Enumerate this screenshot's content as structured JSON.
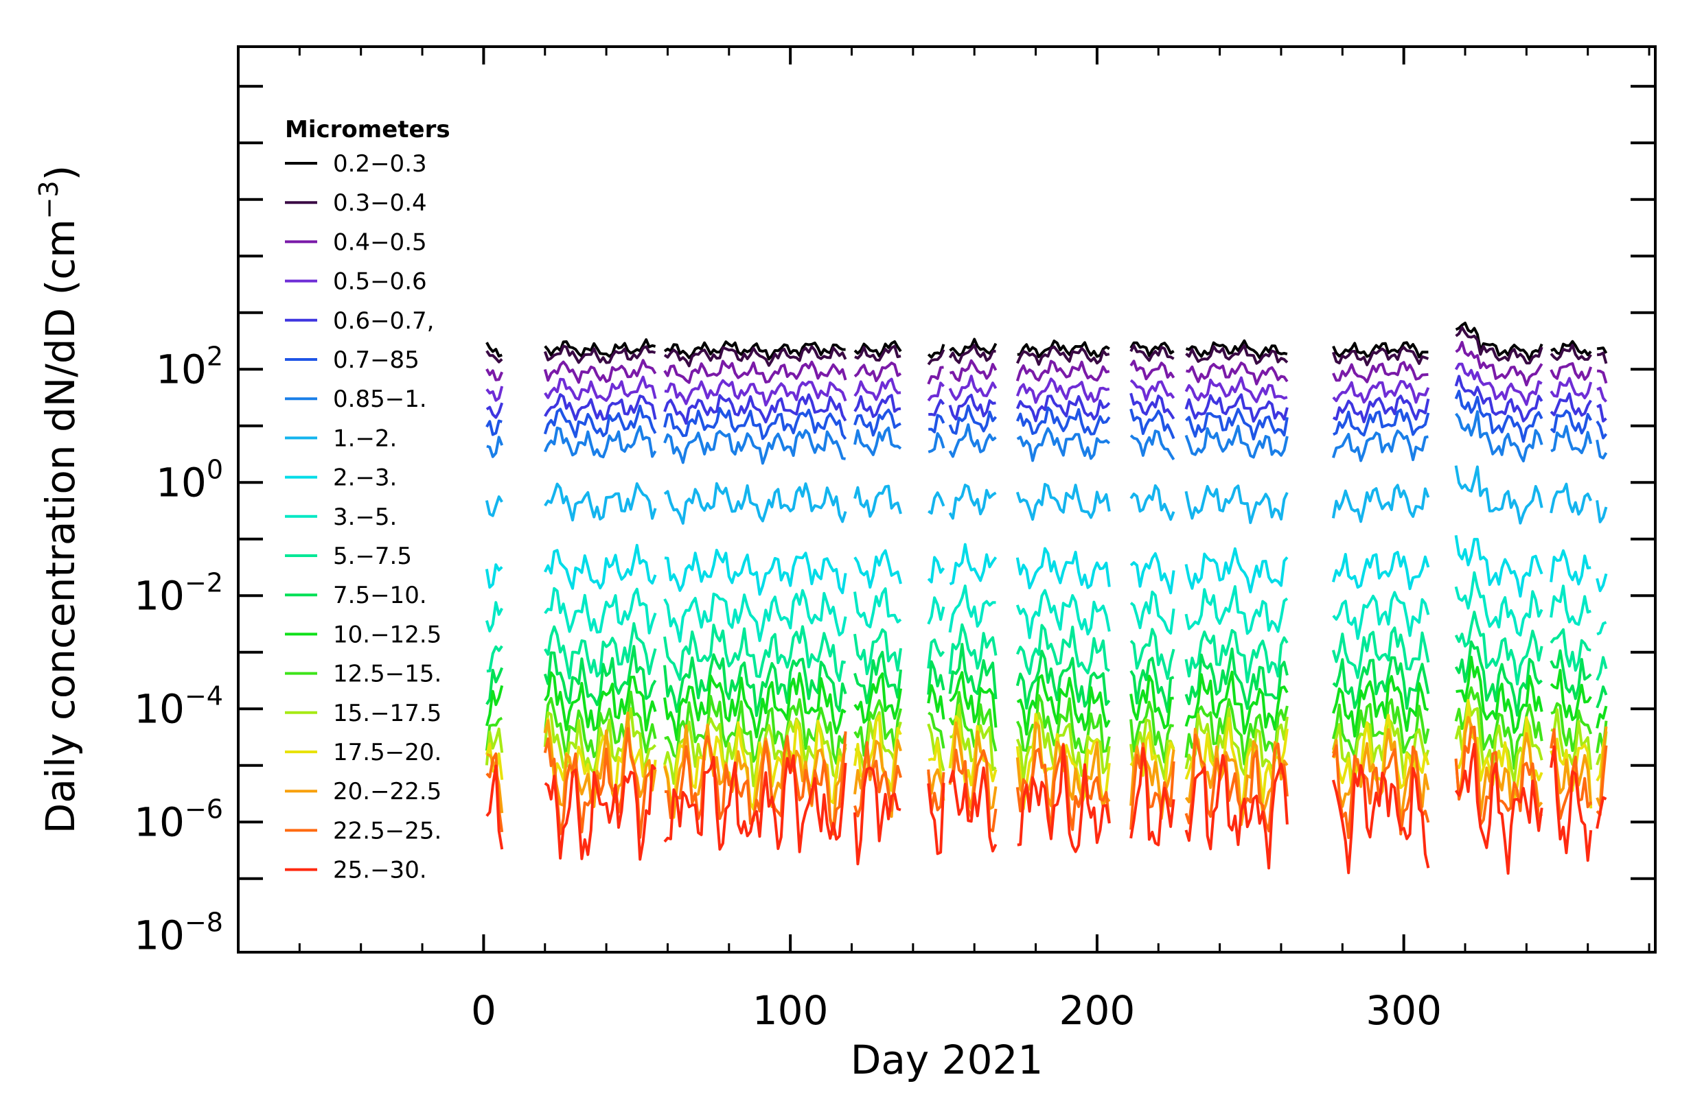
{
  "chart_data": {
    "type": "line",
    "xlabel": "Day 2021",
    "ylabel": "Daily concentration dN/dD (cm",
    "ylabel_exp": "−3",
    "ylabel_close": ")",
    "yscale": "log",
    "xlim": [
      -80,
      382
    ],
    "ylim": [
      -8.3,
      7.7
    ],
    "x_ticks": [
      {
        "value": 0,
        "label": "0"
      },
      {
        "value": 100,
        "label": "100"
      },
      {
        "value": 200,
        "label": "200"
      },
      {
        "value": 300,
        "label": "300"
      }
    ],
    "y_ticks": [
      {
        "exp": 2,
        "base": "10",
        "power": "2"
      },
      {
        "exp": 0,
        "base": "10",
        "power": "0"
      },
      {
        "exp": -2,
        "base": "10",
        "power": "−2"
      },
      {
        "exp": -4,
        "base": "10",
        "power": "−4"
      },
      {
        "exp": -6,
        "base": "10",
        "power": "−6"
      },
      {
        "exp": -8,
        "base": "10",
        "power": "−8"
      }
    ],
    "legend": {
      "title": "Micrometers",
      "position": "top-left"
    },
    "segments": [
      [
        1,
        6
      ],
      [
        20,
        56
      ],
      [
        59,
        118
      ],
      [
        121,
        136
      ],
      [
        145,
        150
      ],
      [
        152,
        167
      ],
      [
        174,
        204
      ],
      [
        211,
        225
      ],
      [
        229,
        262
      ],
      [
        277,
        308
      ],
      [
        317,
        345
      ],
      [
        348,
        361
      ],
      [
        363,
        366
      ]
    ],
    "series": [
      {
        "name": "0.2−0.3",
        "color": "#000000",
        "level": 2.35,
        "amp": 0.24
      },
      {
        "name": "0.3−0.4",
        "color": "#3a0a45",
        "level": 2.25,
        "amp": 0.24
      },
      {
        "name": "0.4−0.5",
        "color": "#7a1aa8",
        "level": 1.95,
        "amp": 0.26
      },
      {
        "name": "0.5−0.6",
        "color": "#6e2dd6",
        "level": 1.62,
        "amp": 0.27
      },
      {
        "name": "0.6−0.7,",
        "color": "#3e35e0",
        "level": 1.32,
        "amp": 0.28
      },
      {
        "name": "0.7−85",
        "color": "#1f55e6",
        "level": 1.05,
        "amp": 0.29
      },
      {
        "name": "0.85−1.",
        "color": "#1a7fe8",
        "level": 0.68,
        "amp": 0.3
      },
      {
        "name": "1.−2.",
        "color": "#14b4ee",
        "level": -0.35,
        "amp": 0.33
      },
      {
        "name": "2.−3.",
        "color": "#00dce8",
        "level": -1.55,
        "amp": 0.35
      },
      {
        "name": "3.−5.",
        "color": "#00e8c4",
        "level": -2.3,
        "amp": 0.38
      },
      {
        "name": "5.−7.5",
        "color": "#00e896",
        "level": -3.0,
        "amp": 0.4
      },
      {
        "name": "7.5−10.",
        "color": "#00e056",
        "level": -3.5,
        "amp": 0.42
      },
      {
        "name": "10.−12.5",
        "color": "#10e01a",
        "level": -3.9,
        "amp": 0.42
      },
      {
        "name": "12.5−15.",
        "color": "#3ee41a",
        "level": -4.35,
        "amp": 0.42
      },
      {
        "name": "15.−17.5",
        "color": "#a6ea14",
        "level": -4.65,
        "amp": 0.42
      },
      {
        "name": "17.5−20.",
        "color": "#e8e20c",
        "level": -4.95,
        "amp": 0.42
      },
      {
        "name": "20.−22.5",
        "color": "#f8a00c",
        "level": -5.15,
        "amp": 0.44
      },
      {
        "name": "22.5−25.",
        "color": "#ff6a10",
        "level": -5.35,
        "amp": 0.46
      },
      {
        "name": "25.−30.",
        "color": "#ff2a10",
        "level": -5.75,
        "amp": 0.5
      }
    ]
  }
}
